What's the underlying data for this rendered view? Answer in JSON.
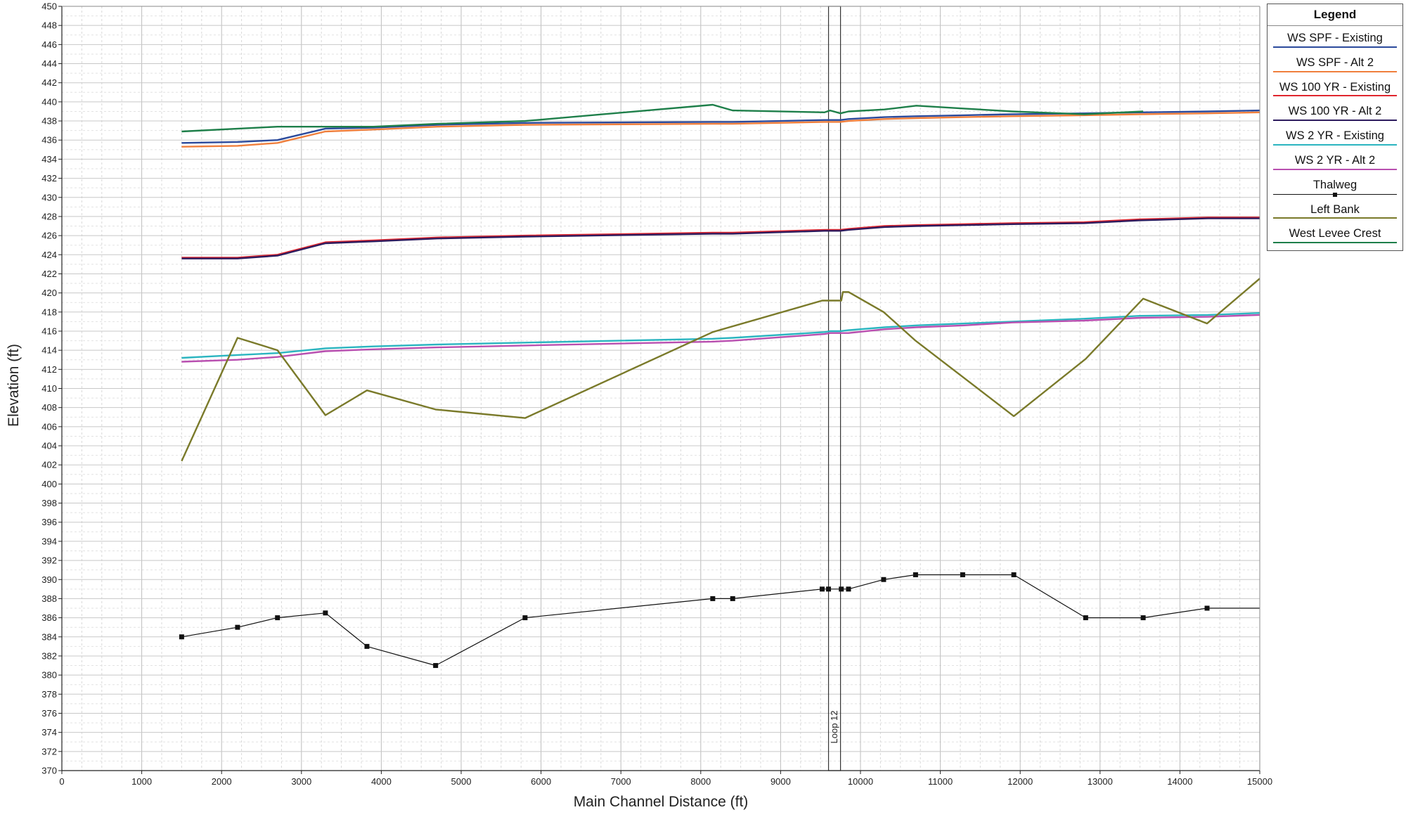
{
  "chart_data": {
    "type": "line",
    "title": "",
    "xlabel": "Main Channel Distance (ft)",
    "ylabel": "Elevation (ft)",
    "xlim": [
      0,
      15000
    ],
    "ylim": [
      370,
      450
    ],
    "x_ticks": [
      0,
      1000,
      2000,
      3000,
      4000,
      5000,
      6000,
      7000,
      8000,
      9000,
      10000,
      11000,
      12000,
      13000,
      14000,
      15000
    ],
    "y_ticks": [
      370,
      372,
      374,
      376,
      378,
      380,
      382,
      384,
      386,
      388,
      390,
      392,
      394,
      396,
      398,
      400,
      402,
      404,
      406,
      408,
      410,
      412,
      414,
      416,
      418,
      420,
      422,
      424,
      426,
      428,
      430,
      432,
      434,
      436,
      438,
      440,
      442,
      444,
      446,
      448,
      450
    ],
    "grid": true,
    "legend_position": "right",
    "legend_title": "Legend",
    "annotations": [
      {
        "label": "Loop 12",
        "x_start": 9600,
        "x_end": 9750
      }
    ],
    "series": [
      {
        "name": "WS  SPF - Existing",
        "color": "#2b4a9c",
        "marker": "none",
        "x": [
          1500,
          2200,
          2700,
          3300,
          3900,
          4700,
          5800,
          8150,
          8400,
          9550,
          9620,
          9750,
          9850,
          10300,
          10700,
          11300,
          11900,
          12800,
          13500,
          14350,
          15000
        ],
        "y": [
          435.7,
          435.8,
          436.0,
          437.2,
          437.3,
          437.6,
          437.8,
          437.9,
          437.9,
          438.1,
          438.1,
          438.1,
          438.2,
          438.4,
          438.5,
          438.6,
          438.7,
          438.8,
          438.9,
          439.0,
          439.1
        ]
      },
      {
        "name": "WS  SPF - Alt 2",
        "color": "#f07f3c",
        "marker": "none",
        "x": [
          1500,
          2200,
          2700,
          3300,
          3900,
          4700,
          5800,
          8150,
          8400,
          9550,
          9620,
          9750,
          9850,
          10300,
          10700,
          11300,
          11900,
          12800,
          13500,
          14350,
          15000
        ],
        "y": [
          435.3,
          435.4,
          435.7,
          436.9,
          437.1,
          437.4,
          437.6,
          437.7,
          437.7,
          437.9,
          437.9,
          437.9,
          438.0,
          438.2,
          438.3,
          438.4,
          438.5,
          438.6,
          438.7,
          438.8,
          438.9
        ]
      },
      {
        "name": "WS  100 YR - Existing",
        "color": "#e0262e",
        "marker": "none",
        "x": [
          1500,
          2200,
          2700,
          3300,
          3900,
          4700,
          5800,
          8150,
          8400,
          9550,
          9620,
          9750,
          9850,
          10300,
          10700,
          11300,
          11900,
          12800,
          13500,
          14350,
          15000
        ],
        "y": [
          423.7,
          423.7,
          424.0,
          425.3,
          425.5,
          425.8,
          426.0,
          426.3,
          426.3,
          426.6,
          426.6,
          426.6,
          426.7,
          427.0,
          427.1,
          427.2,
          427.3,
          427.4,
          427.7,
          427.9,
          427.9
        ]
      },
      {
        "name": "WS  100 YR - Alt 2",
        "color": "#2d1b5e",
        "marker": "none",
        "x": [
          1500,
          2200,
          2700,
          3300,
          3900,
          4700,
          5800,
          8150,
          8400,
          9550,
          9620,
          9750,
          9850,
          10300,
          10700,
          11300,
          11900,
          12800,
          13500,
          14350,
          15000
        ],
        "y": [
          423.6,
          423.6,
          423.9,
          425.2,
          425.4,
          425.7,
          425.9,
          426.2,
          426.2,
          426.5,
          426.5,
          426.5,
          426.6,
          426.9,
          427.0,
          427.1,
          427.2,
          427.3,
          427.6,
          427.8,
          427.8
        ]
      },
      {
        "name": "WS  2 YR - Existing",
        "color": "#2bb5c0",
        "marker": "none",
        "x": [
          1500,
          2200,
          2700,
          3300,
          3900,
          4700,
          5800,
          8150,
          8400,
          9550,
          9620,
          9750,
          9850,
          10300,
          10700,
          11300,
          11900,
          12800,
          13500,
          14350,
          15000
        ],
        "y": [
          413.2,
          413.5,
          413.7,
          414.2,
          414.4,
          414.6,
          414.8,
          415.2,
          415.3,
          415.9,
          416.0,
          416.0,
          416.1,
          416.4,
          416.6,
          416.8,
          417.0,
          417.3,
          417.6,
          417.7,
          417.9
        ]
      },
      {
        "name": "WS  2 YR - Alt 2",
        "color": "#b94fb0",
        "marker": "none",
        "x": [
          1500,
          2200,
          2700,
          3300,
          3900,
          4700,
          5800,
          8150,
          8400,
          9550,
          9620,
          9750,
          9850,
          10300,
          10700,
          11300,
          11900,
          12800,
          13500,
          14350,
          15000
        ],
        "y": [
          412.8,
          413.0,
          413.3,
          413.9,
          414.1,
          414.3,
          414.5,
          414.9,
          415.0,
          415.7,
          415.8,
          415.8,
          415.8,
          416.2,
          416.4,
          416.6,
          416.9,
          417.1,
          417.4,
          417.5,
          417.7
        ]
      },
      {
        "name": "Thalweg",
        "color": "#111111",
        "marker": "square",
        "x": [
          1500,
          2200,
          2700,
          3300,
          3820,
          4680,
          5800,
          8150,
          8400,
          9520,
          9600,
          9760,
          9850,
          10290,
          10690,
          11280,
          11920,
          12820,
          13540,
          14340,
          15000
        ],
        "y": [
          384.0,
          385.0,
          386.0,
          386.5,
          383.0,
          381.0,
          386.0,
          388.0,
          388.0,
          389.0,
          389.0,
          389.0,
          389.0,
          390.0,
          390.5,
          390.5,
          390.5,
          386.0,
          386.0,
          387.0,
          387.0
        ]
      },
      {
        "name": "Left Bank",
        "color": "#7a7a2a",
        "marker": "none",
        "x": [
          1500,
          2200,
          2700,
          3300,
          3820,
          4680,
          5800,
          8150,
          9520,
          9760,
          9780,
          9850,
          10290,
          10690,
          11920,
          12820,
          13540,
          14340,
          15000
        ],
        "y": [
          402.4,
          415.3,
          414.0,
          407.2,
          409.8,
          407.8,
          406.9,
          415.9,
          419.2,
          419.2,
          420.1,
          420.1,
          418.0,
          415.0,
          407.1,
          413.1,
          419.4,
          416.8,
          421.5
        ]
      },
      {
        "name": "West Levee Crest",
        "color": "#1e7f4a",
        "marker": "none",
        "x": [
          1500,
          2700,
          3300,
          3900,
          4700,
          5800,
          8150,
          8400,
          9550,
          9620,
          9750,
          9850,
          10300,
          10700,
          11300,
          11900,
          12800,
          13540
        ],
        "y": [
          436.9,
          437.4,
          437.4,
          437.4,
          437.7,
          438.0,
          439.7,
          439.1,
          438.9,
          439.1,
          438.8,
          439.0,
          439.2,
          439.6,
          439.3,
          439.0,
          438.7,
          439.0
        ]
      }
    ]
  }
}
